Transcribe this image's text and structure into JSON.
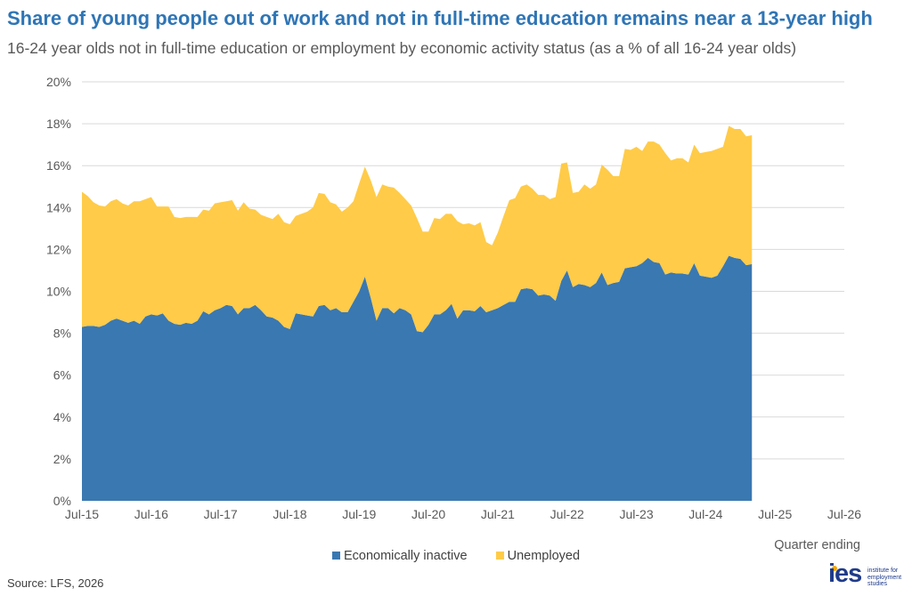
{
  "title": "Share of young people out of work and not in full-time education remains near a 13-year high",
  "subtitle": "16-24 year olds not in full-time education or employment by economic activity status (as a % of all 16-24 year olds)",
  "source": "Source: LFS, 2026",
  "logo": {
    "name": "ies",
    "tagline": [
      "institute for",
      "employment",
      "studies"
    ]
  },
  "colors": {
    "inactive": "#3a78b1",
    "unemployed": "#ffcb48",
    "title": "#2e75b6",
    "grid": "#d9d9d9"
  },
  "chart_data": {
    "type": "area",
    "stacked": true,
    "xlabel": "Quarter ending",
    "ylabel": "",
    "ylim": [
      0,
      20
    ],
    "yticks": [
      "0%",
      "2%",
      "4%",
      "6%",
      "8%",
      "10%",
      "12%",
      "14%",
      "16%",
      "18%",
      "20%"
    ],
    "xticks": [
      "Jul-15",
      "Jul-16",
      "Jul-17",
      "Jul-18",
      "Jul-19",
      "Jul-20",
      "Jul-21",
      "Jul-22",
      "Jul-23",
      "Jul-24",
      "Jul-25",
      "Jul-26"
    ],
    "x_start": "Jul-15",
    "x_step_months": 1,
    "legend_position": "bottom",
    "series": [
      {
        "name": "Economically inactive",
        "color": "#3a78b1",
        "values": [
          8.3,
          8.35,
          8.35,
          8.3,
          8.4,
          8.6,
          8.7,
          8.6,
          8.5,
          8.6,
          8.45,
          8.8,
          8.9,
          8.85,
          8.95,
          8.6,
          8.45,
          8.4,
          8.5,
          8.45,
          8.6,
          9.05,
          8.9,
          9.1,
          9.2,
          9.35,
          9.3,
          8.9,
          9.2,
          9.2,
          9.35,
          9.1,
          8.8,
          8.75,
          8.6,
          8.3,
          8.2,
          8.95,
          8.9,
          8.85,
          8.8,
          9.3,
          9.35,
          9.1,
          9.2,
          9.0,
          9.0,
          9.5,
          10.0,
          10.7,
          9.7,
          8.6,
          9.2,
          9.2,
          8.95,
          9.2,
          9.1,
          8.9,
          8.1,
          8.05,
          8.4,
          8.9,
          8.9,
          9.1,
          9.4,
          8.7,
          9.1,
          9.1,
          9.05,
          9.3,
          9.0,
          9.1,
          9.2,
          9.35,
          9.5,
          9.5,
          10.1,
          10.15,
          10.1,
          9.8,
          9.85,
          9.8,
          9.55,
          10.5,
          11.0,
          10.2,
          10.35,
          10.3,
          10.2,
          10.4,
          10.9,
          10.3,
          10.4,
          10.45,
          11.1,
          11.15,
          11.2,
          11.35,
          11.6,
          11.4,
          11.35,
          10.8,
          10.9,
          10.85,
          10.85,
          10.8,
          11.35,
          10.75,
          10.7,
          10.65,
          10.75,
          11.2,
          11.7,
          11.6,
          11.55,
          11.25,
          11.3
        ]
      },
      {
        "name": "Unemployed",
        "color": "#ffcb48",
        "values": [
          6.45,
          6.2,
          5.9,
          5.8,
          5.65,
          5.7,
          5.7,
          5.6,
          5.6,
          5.7,
          5.85,
          5.6,
          5.6,
          5.2,
          5.1,
          5.45,
          5.1,
          5.1,
          5.05,
          5.1,
          4.95,
          4.85,
          4.95,
          5.1,
          5.05,
          4.95,
          5.05,
          4.95,
          5.05,
          4.75,
          4.55,
          4.55,
          4.75,
          4.7,
          5.1,
          5.0,
          5.0,
          4.65,
          4.8,
          4.95,
          5.2,
          5.4,
          5.3,
          5.15,
          4.95,
          4.8,
          5.0,
          4.8,
          5.15,
          5.25,
          5.6,
          5.9,
          5.9,
          5.8,
          6.0,
          5.5,
          5.3,
          5.2,
          5.4,
          4.8,
          4.45,
          4.6,
          4.55,
          4.6,
          4.3,
          4.65,
          4.1,
          4.15,
          4.1,
          4.0,
          3.35,
          3.1,
          3.6,
          4.25,
          4.85,
          4.95,
          4.9,
          4.95,
          4.8,
          4.8,
          4.75,
          4.6,
          4.95,
          5.6,
          5.15,
          4.5,
          4.4,
          4.8,
          4.7,
          4.7,
          5.15,
          5.5,
          5.1,
          5.05,
          5.7,
          5.6,
          5.7,
          5.35,
          5.55,
          5.75,
          5.65,
          5.8,
          5.35,
          5.5,
          5.5,
          5.35,
          5.65,
          5.85,
          5.95,
          6.05,
          6.05,
          5.7,
          6.2,
          6.15,
          6.2,
          6.15,
          6.15
        ]
      }
    ]
  }
}
